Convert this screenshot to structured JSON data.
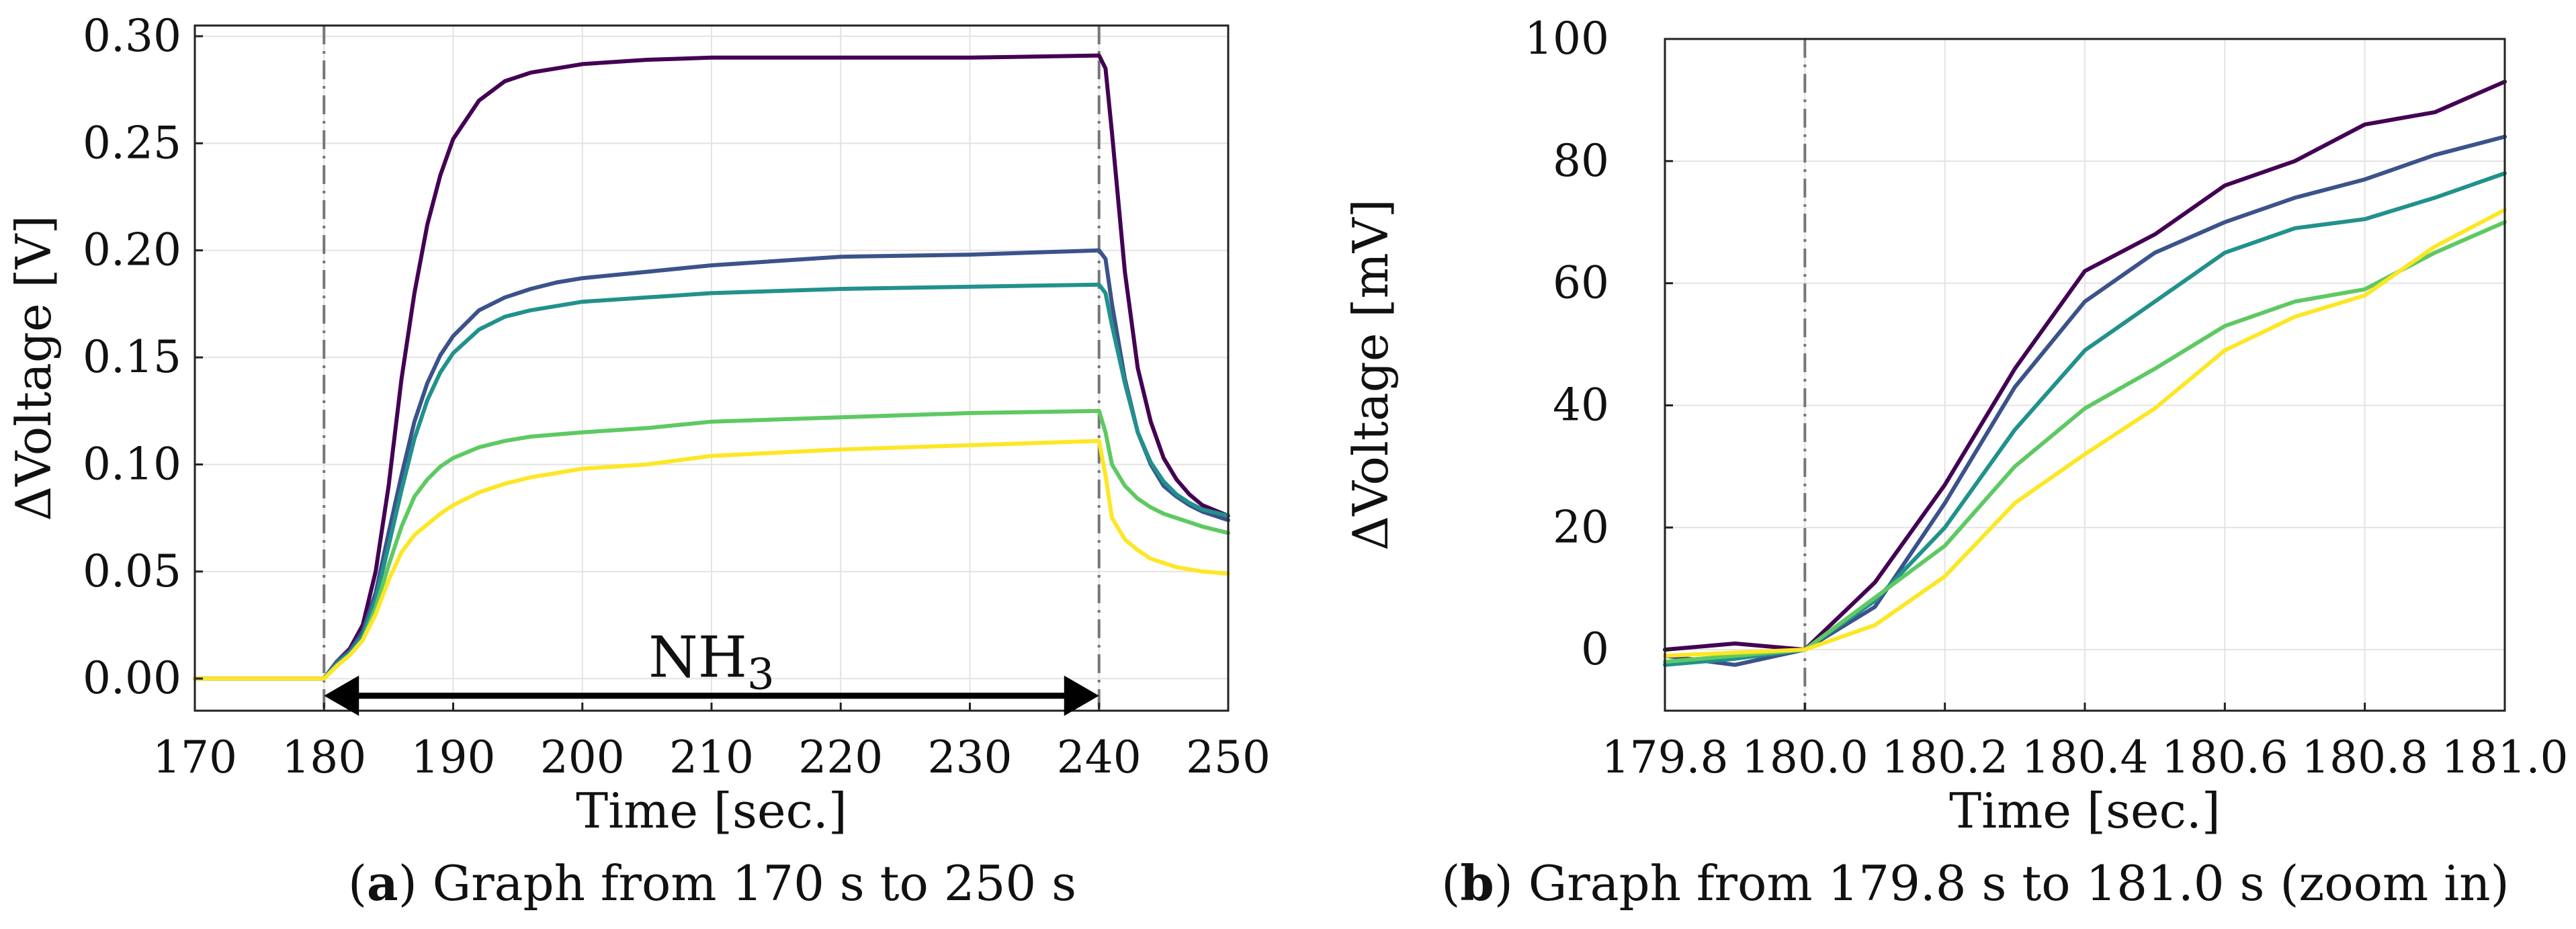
{
  "chart_data": [
    {
      "type": "line",
      "panel": "a",
      "title": "",
      "xlabel": "Time [sec.]",
      "ylabel": "ΔVoltage [V]",
      "xlim": [
        170,
        250
      ],
      "ylim": [
        -0.015,
        0.305
      ],
      "xticks": [
        170,
        180,
        190,
        200,
        210,
        220,
        230,
        240,
        250
      ],
      "xtick_labels": [
        "170",
        "180",
        "190",
        "200",
        "210",
        "220",
        "230",
        "240",
        "250"
      ],
      "yticks": [
        0.0,
        0.05,
        0.1,
        0.15,
        0.2,
        0.25,
        0.3
      ],
      "ytick_labels": [
        "0.00",
        "0.05",
        "0.10",
        "0.15",
        "0.20",
        "0.25",
        "0.30"
      ],
      "grid": true,
      "vlines": [
        180,
        240
      ],
      "annotation": {
        "text": "NH",
        "subscript": "3",
        "x_start": 180,
        "x_end": 240,
        "y": -0.008
      },
      "caption": {
        "letter": "a",
        "text": " Graph from 170 s to 250 s"
      },
      "series": [
        {
          "name": "series-1",
          "color": "#440154",
          "x": [
            170,
            180,
            181,
            182,
            183,
            184,
            185,
            186,
            187,
            188,
            189,
            190,
            192,
            194,
            196,
            198,
            200,
            205,
            210,
            220,
            230,
            240,
            240.5,
            241,
            242,
            243,
            244,
            245,
            246,
            247,
            248,
            250
          ],
          "y": [
            0.0,
            0.0,
            0.008,
            0.014,
            0.025,
            0.05,
            0.09,
            0.14,
            0.18,
            0.212,
            0.235,
            0.252,
            0.27,
            0.279,
            0.283,
            0.285,
            0.287,
            0.289,
            0.29,
            0.29,
            0.29,
            0.291,
            0.285,
            0.255,
            0.19,
            0.145,
            0.12,
            0.103,
            0.093,
            0.086,
            0.081,
            0.076
          ]
        },
        {
          "name": "series-2",
          "color": "#3b528b",
          "x": [
            170,
            180,
            181,
            182,
            183,
            184,
            185,
            186,
            187,
            188,
            189,
            190,
            192,
            194,
            196,
            198,
            200,
            205,
            210,
            220,
            230,
            240,
            240.5,
            241,
            242,
            243,
            244,
            245,
            246,
            247,
            248,
            250
          ],
          "y": [
            0.0,
            0.0,
            0.008,
            0.013,
            0.022,
            0.04,
            0.068,
            0.095,
            0.12,
            0.138,
            0.151,
            0.16,
            0.172,
            0.178,
            0.182,
            0.185,
            0.187,
            0.19,
            0.193,
            0.197,
            0.198,
            0.2,
            0.196,
            0.175,
            0.14,
            0.115,
            0.1,
            0.09,
            0.085,
            0.081,
            0.078,
            0.074
          ]
        },
        {
          "name": "series-3",
          "color": "#21918c",
          "x": [
            170,
            180,
            181,
            182,
            183,
            184,
            185,
            186,
            187,
            188,
            189,
            190,
            192,
            194,
            196,
            198,
            200,
            205,
            210,
            220,
            230,
            240,
            240.5,
            241,
            242,
            243,
            244,
            245,
            246,
            247,
            248,
            250
          ],
          "y": [
            0.0,
            0.0,
            0.007,
            0.012,
            0.02,
            0.037,
            0.062,
            0.088,
            0.112,
            0.13,
            0.143,
            0.152,
            0.163,
            0.169,
            0.172,
            0.174,
            0.176,
            0.178,
            0.18,
            0.182,
            0.183,
            0.184,
            0.18,
            0.165,
            0.138,
            0.115,
            0.101,
            0.092,
            0.086,
            0.082,
            0.079,
            0.076
          ]
        },
        {
          "name": "series-4",
          "color": "#5ec962",
          "x": [
            170,
            180,
            181,
            182,
            183,
            184,
            185,
            186,
            187,
            188,
            189,
            190,
            192,
            194,
            196,
            198,
            200,
            205,
            210,
            220,
            230,
            240,
            240.5,
            241,
            242,
            243,
            244,
            245,
            246,
            247,
            248,
            250
          ],
          "y": [
            0.0,
            0.0,
            0.006,
            0.011,
            0.018,
            0.033,
            0.053,
            0.071,
            0.085,
            0.093,
            0.099,
            0.103,
            0.108,
            0.111,
            0.113,
            0.114,
            0.115,
            0.117,
            0.12,
            0.122,
            0.124,
            0.125,
            0.115,
            0.1,
            0.09,
            0.084,
            0.08,
            0.077,
            0.075,
            0.073,
            0.071,
            0.068
          ]
        },
        {
          "name": "series-5",
          "color": "#fde725",
          "x": [
            170,
            180,
            181,
            182,
            183,
            184,
            185,
            186,
            187,
            188,
            189,
            190,
            192,
            194,
            196,
            198,
            200,
            205,
            210,
            220,
            230,
            240,
            240.5,
            241,
            242,
            243,
            244,
            245,
            246,
            247,
            248,
            250
          ],
          "y": [
            0.0,
            0.0,
            0.006,
            0.011,
            0.018,
            0.03,
            0.046,
            0.059,
            0.067,
            0.072,
            0.077,
            0.081,
            0.087,
            0.091,
            0.094,
            0.096,
            0.098,
            0.1,
            0.104,
            0.107,
            0.109,
            0.111,
            0.095,
            0.075,
            0.065,
            0.06,
            0.056,
            0.054,
            0.052,
            0.051,
            0.05,
            0.049
          ]
        }
      ]
    },
    {
      "type": "line",
      "panel": "b",
      "title": "",
      "xlabel": "Time [sec.]",
      "ylabel": "ΔVoltage [mV]",
      "xlim": [
        179.8,
        181.0
      ],
      "ylim": [
        -10,
        100
      ],
      "xticks": [
        179.8,
        180.0,
        180.2,
        180.4,
        180.6,
        180.8,
        181.0
      ],
      "xtick_labels": [
        "179.8",
        "180.0",
        "180.2",
        "180.4",
        "180.6",
        "180.8",
        "181.0"
      ],
      "yticks": [
        0,
        20,
        40,
        60,
        80,
        100
      ],
      "ytick_labels": [
        "0",
        "20",
        "40",
        "60",
        "80",
        "100"
      ],
      "grid": true,
      "vlines": [
        180.0
      ],
      "caption": {
        "letter": "b",
        "text": " Graph from 179.8 s to 181.0 s (zoom in)"
      },
      "series": [
        {
          "name": "series-1",
          "color": "#440154",
          "x": [
            179.8,
            179.9,
            180.0,
            180.1,
            180.2,
            180.3,
            180.4,
            180.5,
            180.6,
            180.7,
            180.8,
            180.9,
            181.0
          ],
          "y": [
            0,
            1,
            0,
            11,
            27,
            46,
            62,
            68,
            76,
            80,
            86,
            88,
            93
          ]
        },
        {
          "name": "series-2",
          "color": "#3b528b",
          "x": [
            179.8,
            179.9,
            180.0,
            180.1,
            180.2,
            180.3,
            180.4,
            180.5,
            180.6,
            180.7,
            180.8,
            180.9,
            181.0
          ],
          "y": [
            -1,
            -2.5,
            0,
            7,
            24,
            43,
            57,
            65,
            70,
            74,
            77,
            81,
            84
          ]
        },
        {
          "name": "series-3",
          "color": "#21918c",
          "x": [
            179.8,
            179.9,
            180.0,
            180.1,
            180.2,
            180.3,
            180.4,
            180.5,
            180.6,
            180.7,
            180.8,
            180.9,
            181.0
          ],
          "y": [
            -2.5,
            -1.5,
            0,
            8,
            20,
            36,
            49,
            57,
            65,
            69,
            70.5,
            74,
            78
          ]
        },
        {
          "name": "series-4",
          "color": "#5ec962",
          "x": [
            179.8,
            179.9,
            180.0,
            180.1,
            180.2,
            180.3,
            180.4,
            180.5,
            180.6,
            180.7,
            180.8,
            180.9,
            181.0
          ],
          "y": [
            -2,
            -1,
            0,
            8.5,
            17,
            30,
            39.5,
            46,
            53,
            57,
            59,
            65,
            70
          ]
        },
        {
          "name": "series-5",
          "color": "#fde725",
          "x": [
            179.8,
            179.9,
            180.0,
            180.1,
            180.2,
            180.3,
            180.4,
            180.5,
            180.6,
            180.7,
            180.8,
            180.9,
            181.0
          ],
          "y": [
            -1,
            -0.5,
            0,
            4,
            12,
            24,
            32,
            39.5,
            49,
            54.5,
            58,
            66,
            72
          ]
        }
      ]
    }
  ]
}
